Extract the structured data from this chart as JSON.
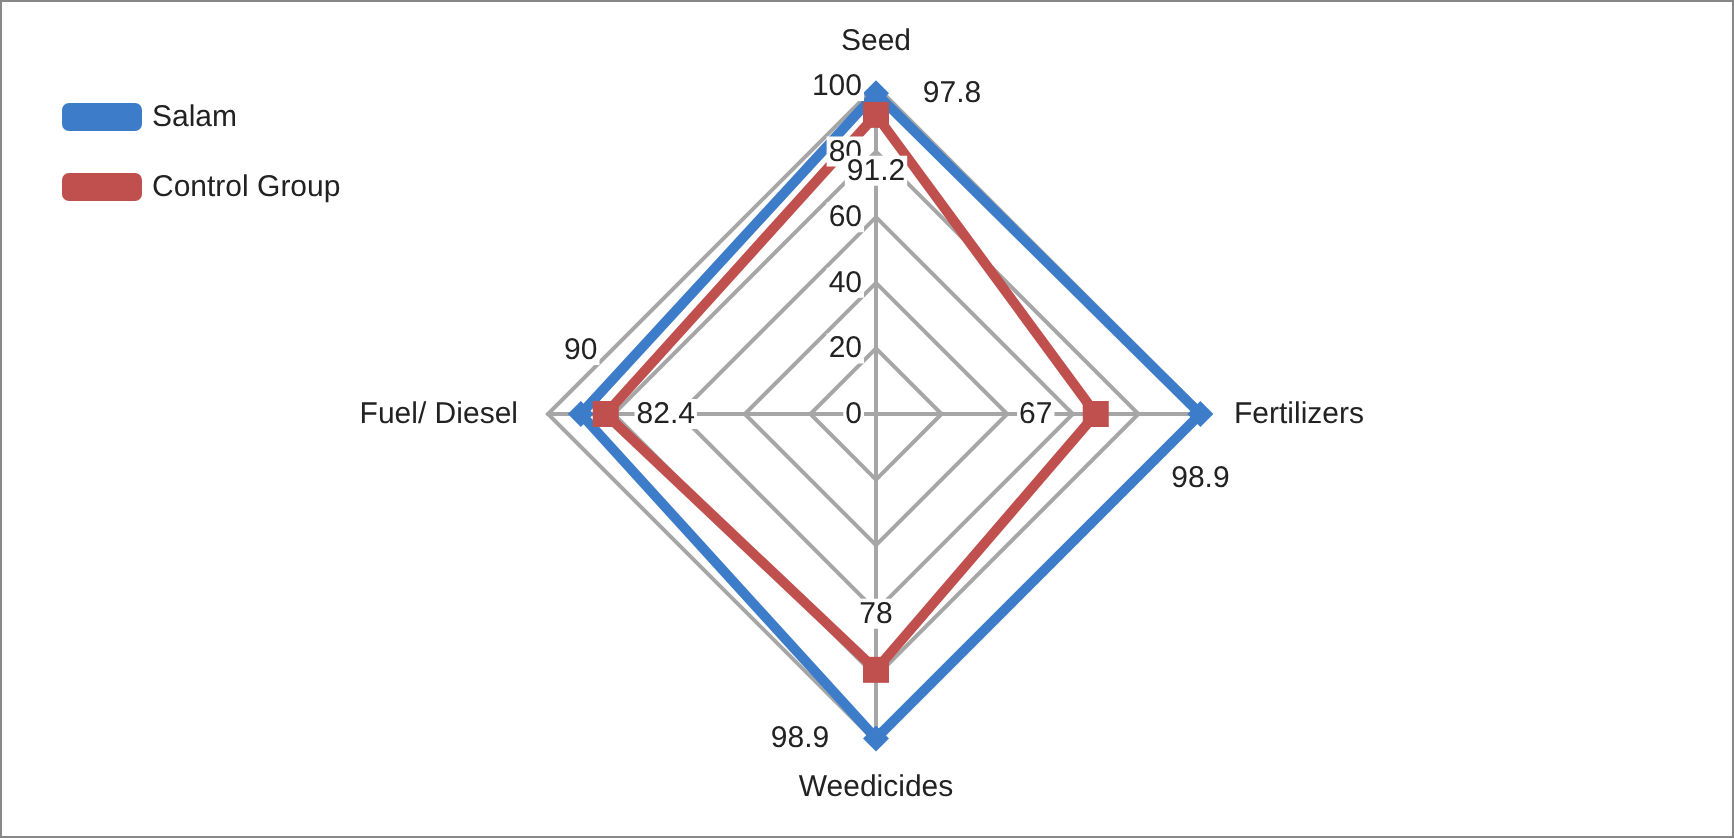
{
  "chart_data": {
    "type": "radar",
    "categories": [
      "Seed",
      "Fertilizers",
      "Weedicides",
      "Fuel/ Diesel"
    ],
    "series": [
      {
        "name": "Salam",
        "color": "#3d7cc9",
        "values": [
          97.8,
          98.9,
          98.9,
          90
        ],
        "marker": "diamond"
      },
      {
        "name": "Control Group",
        "color": "#c0504d",
        "values": [
          91.2,
          67,
          78,
          82.4
        ],
        "marker": "square"
      }
    ],
    "ylim": [
      0,
      100
    ],
    "yticks": [
      0,
      20,
      40,
      60,
      80,
      100
    ],
    "grid": true,
    "legend": "top left",
    "data_labels": true,
    "line_style": "solid"
  }
}
